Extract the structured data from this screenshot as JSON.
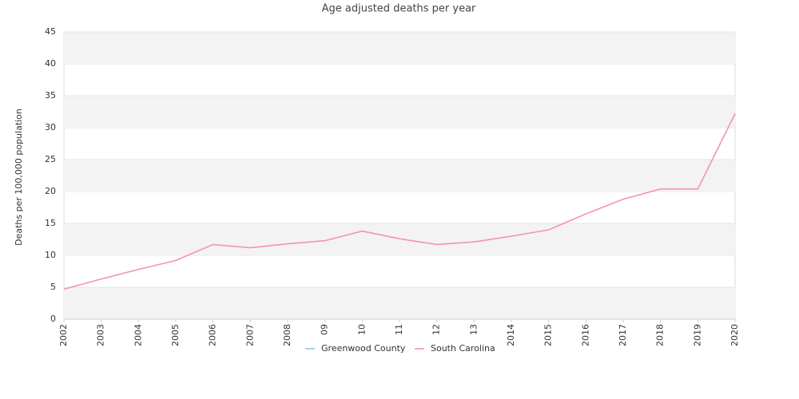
{
  "chart_data": {
    "type": "line",
    "title": "Age adjusted deaths per year",
    "y_label": "Deaths per 100,000 population",
    "categories": [
      "2002",
      "2003",
      "2004",
      "2005",
      "2006",
      "2007",
      "2008",
      "09",
      "10",
      "11",
      "12",
      "13",
      "2014",
      "2015",
      "2016",
      "2017",
      "2018",
      "2019",
      "2020"
    ],
    "series": [
      {
        "name": "Greenwood County",
        "color": "#8ecae6",
        "values": [
          null,
          null,
          null,
          null,
          null,
          null,
          null,
          null,
          null,
          null,
          null,
          null,
          null,
          null,
          null,
          null,
          null,
          null,
          null
        ]
      },
      {
        "name": "South Carolina",
        "color": "#f48fc0",
        "values": [
          4.7,
          6.3,
          7.8,
          9.2,
          11.7,
          11.2,
          11.8,
          12.3,
          13.8,
          12.6,
          11.7,
          12.1,
          13.0,
          14.0,
          16.5,
          18.8,
          20.4,
          20.4,
          32.2
        ]
      }
    ],
    "ylim": [
      0,
      45
    ],
    "yticks": [
      0,
      5,
      10,
      15,
      20,
      25,
      30,
      35,
      40,
      45
    ],
    "grid": true,
    "legend": "bottom"
  }
}
